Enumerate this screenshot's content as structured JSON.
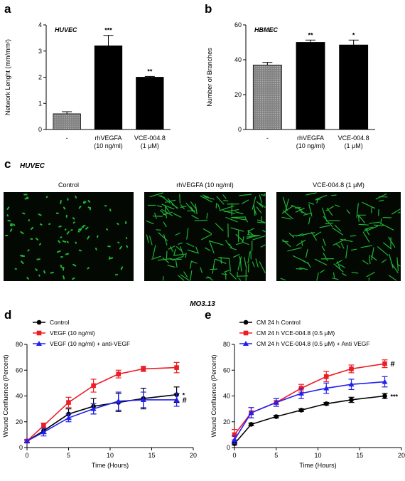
{
  "panels": {
    "a": "a",
    "b": "b",
    "c": "c",
    "d": "d",
    "e": "e"
  },
  "section_c": {
    "cell_label": "HUVEC",
    "images": [
      {
        "label": "Control",
        "density": "low"
      },
      {
        "label": "rhVEGFA (10 ng/ml)",
        "density": "high"
      },
      {
        "label": "VCE-004.8 (1 μM)",
        "density": "medium"
      }
    ],
    "image_color": "#22c83a"
  },
  "section_de_title": "MO3.13",
  "chart_data": [
    {
      "type": "bar",
      "panel": "a",
      "annotation": "HUVEC",
      "categories": [
        "-",
        "rhVEGFA\n(10 ng/ml)",
        "VCE-004.8\n(1 μM)"
      ],
      "values": [
        0.6,
        3.2,
        2.0
      ],
      "errors": [
        0.08,
        0.4,
        0.03
      ],
      "significance": [
        "",
        "***",
        "**"
      ],
      "bar_colors": [
        "#8c8c8c",
        "#000000",
        "#000000"
      ],
      "ylabel": "Network Lenght (mm/mm²)",
      "ylim": [
        0,
        4
      ],
      "yticks": [
        "0",
        "1",
        "2",
        "3",
        "4"
      ]
    },
    {
      "type": "bar",
      "panel": "b",
      "annotation": "HBMEC",
      "categories": [
        "-",
        "rhVEGFA\n(10 ng/ml)",
        "VCE-004.8\n(1 μM)"
      ],
      "values": [
        37,
        50,
        48.5
      ],
      "errors": [
        1.5,
        1.3,
        2.8
      ],
      "significance": [
        "",
        "**",
        "*"
      ],
      "bar_colors": [
        "#8c8c8c",
        "#000000",
        "#000000"
      ],
      "ylabel": "Number of Branches",
      "ylim": [
        0,
        60
      ],
      "yticks": [
        "0",
        "20",
        "40",
        "60"
      ]
    },
    {
      "type": "line",
      "panel": "d",
      "xlabel": "Time (Hours)",
      "ylabel": "Wound Confluence (Percent)",
      "xlim": [
        0,
        20
      ],
      "ylim": [
        0,
        80
      ],
      "xticks": [
        "0",
        "5",
        "10",
        "15",
        "20"
      ],
      "yticks": [
        "0",
        "20",
        "40",
        "60",
        "80"
      ],
      "x": [
        0,
        2,
        5,
        8,
        11,
        14,
        18
      ],
      "legend_position": "top-left",
      "series": [
        {
          "name": "Control",
          "color": "#000000",
          "marker": "circle",
          "values": [
            5,
            13,
            26,
            32,
            35,
            38,
            41
          ],
          "errors": [
            1,
            2,
            4,
            6,
            7,
            8,
            6
          ]
        },
        {
          "name": "VEGF (10 ng/ml)",
          "color": "#ee1c24",
          "marker": "square",
          "values": [
            5,
            17,
            35,
            48,
            57,
            61,
            62
          ],
          "errors": [
            1,
            2,
            4,
            5,
            3,
            2,
            4
          ]
        },
        {
          "name": "VEGF (10 ng/ml) + anti-VEGF",
          "color": "#2020ee",
          "marker": "triangle",
          "values": [
            5,
            12,
            23,
            30,
            36,
            37,
            37
          ],
          "errors": [
            1,
            3,
            3,
            4,
            7,
            6,
            5
          ]
        }
      ],
      "end_annotations": [
        "*",
        "",
        "#"
      ]
    },
    {
      "type": "line",
      "panel": "e",
      "xlabel": "Time (Hours)",
      "ylabel": "Wound Confluence (Percent)",
      "xlim": [
        0,
        20
      ],
      "ylim": [
        0,
        80
      ],
      "xticks": [
        "0",
        "5",
        "10",
        "15",
        "20"
      ],
      "yticks": [
        "0",
        "20",
        "40",
        "60",
        "80"
      ],
      "x": [
        0,
        2,
        5,
        8,
        11,
        14,
        18
      ],
      "legend_position": "top-left",
      "series": [
        {
          "name": "CM 24 h Control",
          "color": "#000000",
          "marker": "circle",
          "values": [
            3,
            18,
            24,
            29,
            34,
            37,
            40
          ],
          "errors": [
            1,
            1,
            1,
            1,
            1,
            2,
            2
          ]
        },
        {
          "name": "CM 24 h VCE-004.8 (0.5 μM)",
          "color": "#ee1c24",
          "marker": "square",
          "values": [
            10,
            27,
            35,
            46,
            55,
            61,
            65
          ],
          "errors": [
            4,
            4,
            3,
            3,
            4,
            3,
            3
          ]
        },
        {
          "name": "CM 24 h VCE-004.8 (0.5 μM) + Anti VEGF",
          "color": "#2020ee",
          "marker": "triangle",
          "values": [
            6,
            27,
            35,
            42,
            46,
            49,
            51
          ],
          "errors": [
            3,
            4,
            3,
            4,
            4,
            4,
            4
          ]
        }
      ],
      "end_annotations": [
        "***",
        "#",
        ""
      ]
    }
  ]
}
